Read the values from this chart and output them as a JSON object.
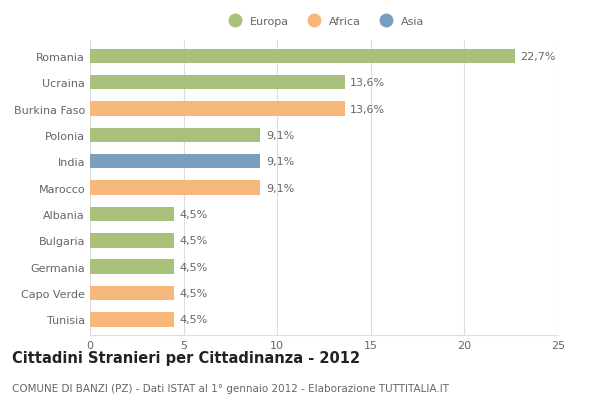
{
  "countries": [
    "Romania",
    "Ucraina",
    "Burkina Faso",
    "Polonia",
    "India",
    "Marocco",
    "Albania",
    "Bulgaria",
    "Germania",
    "Capo Verde",
    "Tunisia"
  ],
  "values": [
    22.7,
    13.6,
    13.6,
    9.1,
    9.1,
    9.1,
    4.5,
    4.5,
    4.5,
    4.5,
    4.5
  ],
  "labels": [
    "22,7%",
    "13,6%",
    "13,6%",
    "9,1%",
    "9,1%",
    "9,1%",
    "4,5%",
    "4,5%",
    "4,5%",
    "4,5%",
    "4,5%"
  ],
  "colors": [
    "#a8c07a",
    "#a8c07a",
    "#f5b87a",
    "#a8c07a",
    "#7a9ebe",
    "#f5b87a",
    "#a8c07a",
    "#a8c07a",
    "#a8c07a",
    "#f5b87a",
    "#f5b87a"
  ],
  "legend": [
    {
      "label": "Europa",
      "color": "#a8c07a"
    },
    {
      "label": "Africa",
      "color": "#f5b87a"
    },
    {
      "label": "Asia",
      "color": "#7a9ebe"
    }
  ],
  "xlim": [
    0,
    25
  ],
  "xticks": [
    0,
    5,
    10,
    15,
    20,
    25
  ],
  "title": "Cittadini Stranieri per Cittadinanza - 2012",
  "subtitle": "COMUNE DI BANZI (PZ) - Dati ISTAT al 1° gennaio 2012 - Elaborazione TUTTITALIA.IT",
  "background_color": "#ffffff",
  "grid_color": "#dddddd",
  "bar_height": 0.55,
  "label_fontsize": 8,
  "tick_fontsize": 8,
  "title_fontsize": 10.5,
  "subtitle_fontsize": 7.5,
  "text_color": "#666666",
  "title_color": "#222222"
}
